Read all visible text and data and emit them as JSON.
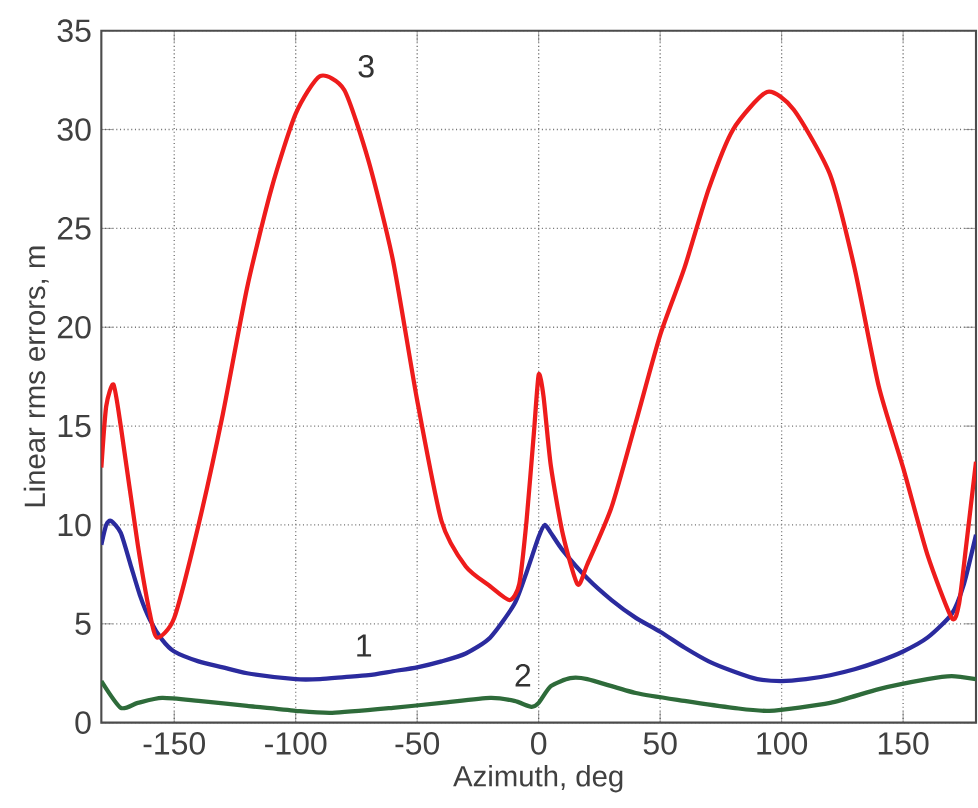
{
  "chart_data": {
    "type": "line",
    "xlabel": "Azimuth, deg",
    "ylabel": "Linear rms errors, m",
    "xlim": [
      -180,
      180
    ],
    "xticks": [
      -150,
      -100,
      -50,
      0,
      50,
      100,
      150
    ],
    "ylim": [
      0,
      35
    ],
    "yticks": [
      0,
      5,
      10,
      15,
      20,
      25,
      30,
      35
    ],
    "grid": true,
    "marker": "none",
    "line_style": "solid",
    "series": [
      {
        "name": "1",
        "color": "#2b2b9e",
        "x": [
          -180,
          -178,
          -176,
          -172,
          -168,
          -164,
          -160,
          -155,
          -150,
          -140,
          -130,
          -120,
          -100,
          -90,
          -80,
          -70,
          -60,
          -50,
          -40,
          -30,
          -20,
          -10,
          -5,
          0,
          2.5,
          5,
          10,
          20,
          30,
          40,
          50,
          60,
          70,
          80,
          90,
          100,
          110,
          120,
          130,
          140,
          150,
          160,
          170,
          175,
          180
        ],
        "values": [
          9,
          10,
          10.2,
          9.6,
          8,
          6.4,
          5.2,
          4.2,
          3.6,
          3.1,
          2.8,
          2.5,
          2.2,
          2.2,
          2.3,
          2.4,
          2.6,
          2.8,
          3.1,
          3.5,
          4.3,
          6,
          7.6,
          9.4,
          10,
          9.6,
          8.7,
          7.3,
          6.2,
          5.3,
          4.6,
          3.8,
          3.1,
          2.6,
          2.2,
          2.1,
          2.2,
          2.4,
          2.7,
          3.1,
          3.6,
          4.3,
          5.5,
          7,
          9.5
        ]
      },
      {
        "name": "2",
        "color": "#2e6b3a",
        "x": [
          -180,
          -172,
          -165,
          -155,
          -140,
          -120,
          -100,
          -85,
          -60,
          -40,
          -20,
          -10,
          -3,
          0,
          5,
          13,
          20,
          40,
          60,
          80,
          95,
          120,
          140,
          160,
          170,
          180
        ],
        "values": [
          2.1,
          0.75,
          1,
          1.25,
          1.1,
          0.85,
          0.6,
          0.5,
          0.75,
          1,
          1.25,
          1.1,
          0.8,
          1,
          1.85,
          2.25,
          2.2,
          1.5,
          1.1,
          0.75,
          0.6,
          1,
          1.7,
          2.2,
          2.35,
          2.2
        ]
      },
      {
        "name": "3",
        "color": "#ee1c1c",
        "x": [
          -180,
          -178,
          -175,
          -172,
          -165,
          -160,
          -157,
          -150,
          -140,
          -130,
          -120,
          -110,
          -100,
          -90,
          -80,
          -70,
          -60,
          -50,
          -40,
          -30,
          -20,
          -12,
          -8,
          -5,
          -2,
          0,
          2,
          5,
          10,
          16,
          20,
          30,
          40,
          50,
          60,
          70,
          80,
          94,
          105,
          120,
          130,
          140,
          150,
          160,
          170,
          173,
          176,
          180
        ],
        "values": [
          12.9,
          16,
          17.1,
          15,
          9,
          5.5,
          4.3,
          5.3,
          10,
          15.6,
          22,
          27,
          30.8,
          32.7,
          32,
          28.4,
          23.4,
          16.3,
          10.2,
          7.9,
          6.9,
          6.2,
          7,
          10.2,
          14.6,
          17.6,
          16.5,
          13,
          9.5,
          7,
          8,
          10.9,
          15.2,
          19.6,
          23,
          27,
          30,
          31.9,
          31,
          27.7,
          23,
          17,
          12.9,
          8.5,
          5.3,
          6,
          9,
          13.2
        ]
      }
    ]
  }
}
